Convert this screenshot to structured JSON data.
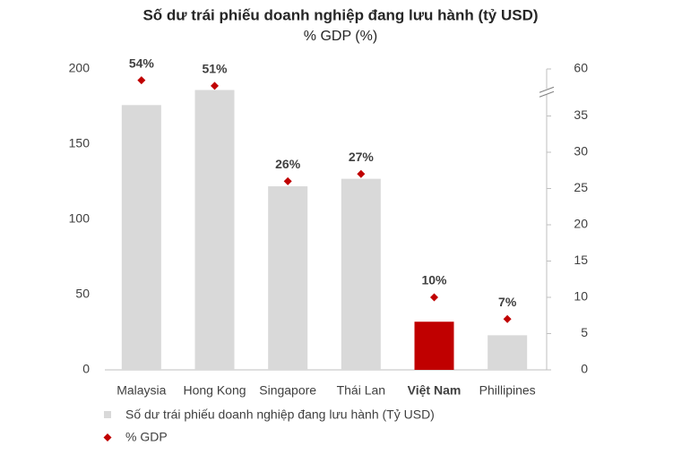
{
  "chart_data": {
    "type": "bar",
    "title": "Số dư trái phiếu doanh nghiệp đang lưu hành (tỷ USD)",
    "subtitle": "% GDP (%)",
    "categories": [
      "Malaysia",
      "Hong Kong",
      "Singapore",
      "Thái Lan",
      "Việt Nam",
      "Phillipines"
    ],
    "highlight": "Việt Nam",
    "series": [
      {
        "name": "Số dư trái phiếu doanh nghiệp đang lưu hành (Tỷ USD)",
        "color": "#d9d9d9",
        "highlight_color": "#c00000",
        "values": [
          176,
          186,
          122,
          127,
          32,
          23
        ]
      },
      {
        "name": "% GDP",
        "color": "#c00000",
        "axis": "y2",
        "marker": "diamond",
        "values": [
          54,
          51,
          26,
          27,
          10,
          7
        ],
        "value_labels": [
          "54%",
          "51%",
          "26%",
          "27%",
          "10%",
          "7%"
        ]
      }
    ],
    "ylim": [
      0,
      200
    ],
    "yticks": [
      0,
      50,
      100,
      150,
      200
    ],
    "y2lim": [
      0,
      60
    ],
    "y2ticks": [
      0,
      5,
      10,
      15,
      20,
      25,
      30,
      35,
      60
    ],
    "y2_axis_break": true,
    "grid": false
  }
}
